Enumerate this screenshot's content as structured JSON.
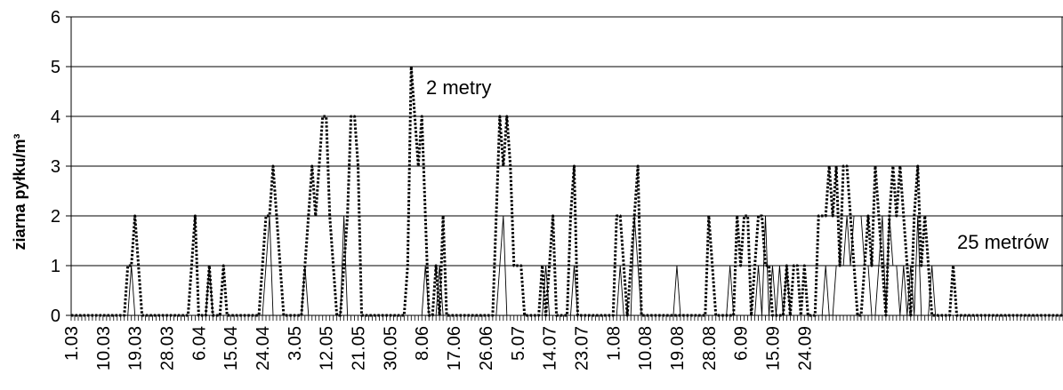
{
  "chart_data": {
    "type": "line",
    "ylabel": "ziarna pyłku/m³",
    "ylim": [
      0,
      6
    ],
    "yticks": [
      0,
      1,
      2,
      3,
      4,
      5,
      6
    ],
    "grid": "horizontal",
    "x_start": "1.03",
    "x_tick_labels": [
      "1.03",
      "10.03",
      "19.03",
      "28.03",
      "6.04",
      "15.04",
      "24.04",
      "3.05",
      "12.05",
      "21.05",
      "30.05",
      "8.06",
      "17.06",
      "26.06",
      "5.07",
      "14.07",
      "23.07",
      "1.08",
      "10.08",
      "19.08",
      "28.08",
      "6.09",
      "15.09",
      "24.09"
    ],
    "annotations": [
      {
        "text": "2 metry",
        "series": "2 metry"
      },
      {
        "text": "25 metrów",
        "series": "25 metrów"
      }
    ],
    "series": [
      {
        "name": "2 metry",
        "style": "dotted",
        "values": [
          0,
          0,
          0,
          0,
          0,
          0,
          0,
          0,
          0,
          0,
          0,
          0,
          0,
          0,
          0,
          0,
          1,
          1,
          2,
          1,
          0,
          0,
          0,
          0,
          0,
          0,
          0,
          0,
          0,
          0,
          0,
          0,
          0,
          0,
          1,
          2,
          0,
          0,
          0,
          1,
          0,
          0,
          0,
          1,
          0,
          0,
          0,
          0,
          0,
          0,
          0,
          0,
          0,
          0,
          1,
          2,
          2,
          3,
          2,
          1,
          0,
          0,
          0,
          0,
          0,
          0,
          1,
          2,
          3,
          2,
          3,
          4,
          4,
          2,
          1,
          0,
          0,
          1,
          2,
          4,
          4,
          3,
          0,
          0,
          0,
          0,
          0,
          0,
          0,
          0,
          0,
          0,
          0,
          0,
          0,
          1,
          5,
          4,
          3,
          4,
          2,
          0,
          0,
          1,
          0,
          2,
          0,
          0,
          0,
          0,
          0,
          0,
          0,
          0,
          0,
          0,
          0,
          0,
          0,
          0,
          2,
          4,
          3,
          4,
          3,
          1,
          1,
          1,
          0,
          0,
          0,
          0,
          0,
          1,
          0,
          1,
          2,
          0,
          0,
          0,
          0,
          2,
          3,
          0,
          0,
          0,
          0,
          0,
          0,
          0,
          0,
          0,
          0,
          0,
          2,
          2,
          1,
          0,
          1,
          2,
          3,
          0,
          0,
          0,
          0,
          0,
          0,
          0,
          0,
          0,
          0,
          0,
          0,
          0,
          0,
          0,
          0,
          0,
          0,
          0,
          2,
          1,
          0,
          0,
          0,
          0,
          0,
          0,
          2,
          1,
          2,
          2,
          0,
          1,
          2,
          2,
          1,
          1,
          0,
          0,
          0,
          0,
          1,
          0,
          1,
          1,
          0,
          1,
          0,
          0,
          0,
          2,
          2,
          2,
          3,
          2,
          3,
          1,
          3,
          3,
          2,
          1,
          0,
          0,
          1,
          2,
          1,
          3,
          2,
          1,
          0,
          2,
          3,
          2,
          3,
          2,
          1,
          0,
          2,
          3,
          1,
          2,
          1,
          0,
          0,
          0,
          0,
          0,
          0,
          1,
          0,
          0,
          0,
          0,
          0,
          0,
          0,
          0,
          0,
          0,
          0,
          0,
          0,
          0,
          0,
          0,
          0,
          0,
          0,
          0,
          0,
          0,
          0,
          0,
          0,
          0,
          0,
          0,
          0,
          0,
          0
        ]
      },
      {
        "name": "25 metrów",
        "style": "solid",
        "values": [
          0,
          0,
          0,
          0,
          0,
          0,
          0,
          0,
          0,
          0,
          0,
          0,
          0,
          0,
          0,
          0,
          0,
          1,
          0,
          0,
          0,
          0,
          0,
          0,
          0,
          0,
          0,
          0,
          0,
          0,
          0,
          0,
          0,
          0,
          0,
          0,
          0,
          0,
          0,
          1,
          0,
          0,
          0,
          0,
          0,
          0,
          0,
          0,
          0,
          0,
          0,
          0,
          0,
          0,
          0,
          1,
          2,
          0,
          0,
          0,
          0,
          0,
          0,
          0,
          0,
          0,
          1,
          0,
          0,
          0,
          0,
          0,
          0,
          0,
          0,
          0,
          0,
          2,
          0,
          0,
          0,
          0,
          0,
          0,
          0,
          0,
          0,
          0,
          0,
          0,
          0,
          0,
          0,
          0,
          0,
          0,
          0,
          0,
          0,
          0,
          1,
          0,
          0,
          0,
          1,
          0,
          0,
          0,
          0,
          0,
          0,
          0,
          0,
          0,
          0,
          0,
          0,
          0,
          0,
          0,
          0,
          1,
          2,
          0,
          0,
          0,
          0,
          0,
          0,
          0,
          0,
          0,
          0,
          0,
          1,
          0,
          0,
          0,
          0,
          0,
          0,
          0,
          1,
          0,
          0,
          0,
          0,
          0,
          0,
          0,
          0,
          0,
          0,
          0,
          0,
          1,
          0,
          0,
          0,
          2,
          1,
          0,
          0,
          0,
          0,
          0,
          0,
          0,
          0,
          0,
          0,
          1,
          0,
          0,
          0,
          0,
          0,
          0,
          0,
          0,
          0,
          0,
          0,
          0,
          0,
          0,
          1,
          0,
          0,
          0,
          0,
          0,
          0,
          0,
          1,
          0,
          2,
          0,
          1,
          0,
          1,
          0,
          1,
          0,
          0,
          0,
          0,
          0,
          0,
          0,
          0,
          0,
          0,
          1,
          0,
          0,
          1,
          1,
          1,
          2,
          1,
          2,
          2,
          2,
          1,
          1,
          0,
          0,
          1,
          2,
          0,
          2,
          1,
          1,
          0,
          1,
          0,
          1,
          0,
          2,
          0,
          0,
          0,
          1,
          0,
          0,
          0,
          0,
          0,
          0,
          0,
          0,
          0,
          0,
          0,
          0,
          0,
          0,
          0,
          0,
          0,
          0,
          0,
          0,
          0,
          0,
          0,
          0,
          0,
          0,
          0,
          0,
          0,
          0,
          0,
          0,
          0,
          0,
          0,
          0,
          0,
          0,
          0,
          0,
          0
        ]
      }
    ]
  }
}
